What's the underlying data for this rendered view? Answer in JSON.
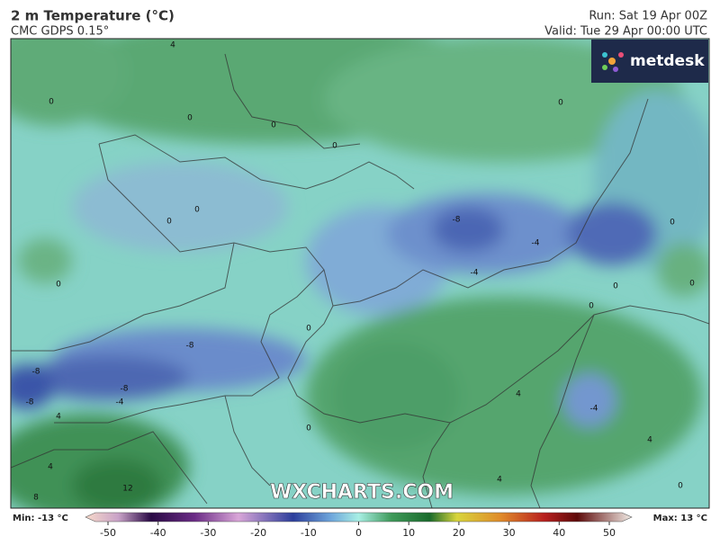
{
  "header": {
    "title": "2 m Temperature (°C)",
    "model": "CMC GDPS 0.15°",
    "run": "Run: Sat 19 Apr 00Z",
    "valid": "Valid: Tue 29 Apr 00:00 UTC"
  },
  "logo": "metdesk",
  "watermark": "WXCHARTS.COM",
  "contour_labels": [
    "4",
    "0",
    "0",
    "0",
    "0",
    "0",
    "0",
    "0",
    "-8",
    "-4",
    "-4",
    "0",
    "0",
    "0",
    "0",
    "0",
    "0",
    "-8",
    "-8",
    "-8",
    "-4",
    "-8",
    "4",
    "-4",
    "4",
    "0",
    "4",
    "4",
    "12",
    "8",
    "4",
    "0"
  ],
  "colorbar": {
    "min_label": "Min: -13 °C",
    "max_label": "Max: 13 °C",
    "ticks": [
      -50,
      -40,
      -30,
      -20,
      -10,
      0,
      10,
      20,
      30,
      40,
      50
    ]
  }
}
